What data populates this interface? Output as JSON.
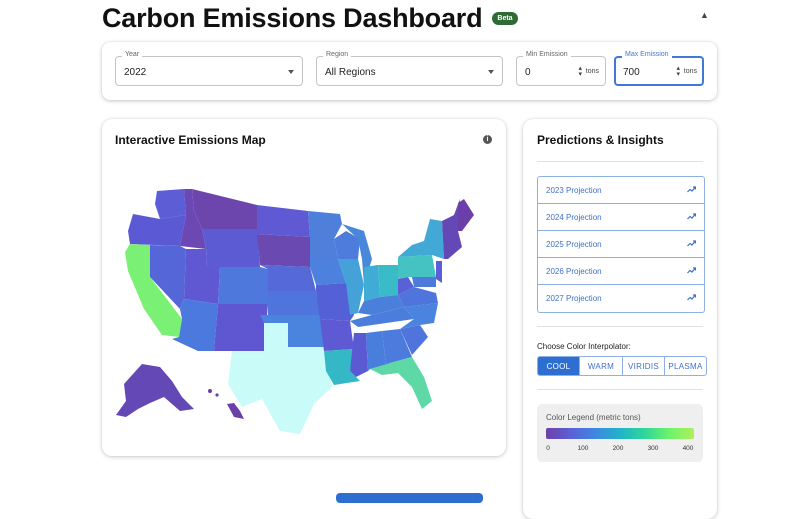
{
  "header": {
    "title": "Carbon Emissions Dashboard",
    "badge": "Beta",
    "collapse_icon": "chevron-up-icon"
  },
  "filters": {
    "year": {
      "label": "Year",
      "value": "2022"
    },
    "region": {
      "label": "Region",
      "value": "All Regions"
    },
    "min_emission": {
      "label": "Min Emission",
      "value": "0",
      "unit": "tons"
    },
    "max_emission": {
      "label": "Max Emission",
      "value": "700",
      "unit": "tons"
    }
  },
  "map": {
    "title": "Interactive Emissions Map",
    "info_icon": "info-icon"
  },
  "insights": {
    "title": "Predictions & Insights",
    "projections": [
      "2023 Projection",
      "2024 Projection",
      "2025 Projection",
      "2026 Projection",
      "2027 Projection"
    ],
    "interpolator_label": "Choose Color Interpolator:",
    "interpolators": [
      "COOL",
      "WARM",
      "VIRIDIS",
      "PLASMA"
    ],
    "active_interpolator": "COOL",
    "legend": {
      "title": "Color Legend (metric tons)",
      "ticks": [
        "0",
        "100",
        "200",
        "300",
        "400"
      ],
      "gradient": [
        "#6e40aa",
        "#5a61d6",
        "#3d88e0",
        "#22b3c9",
        "#2fd79a",
        "#6df26a",
        "#aff05b"
      ]
    }
  },
  "colors": {
    "accent": "#2f6ed1",
    "badge": "#2e6b34"
  }
}
